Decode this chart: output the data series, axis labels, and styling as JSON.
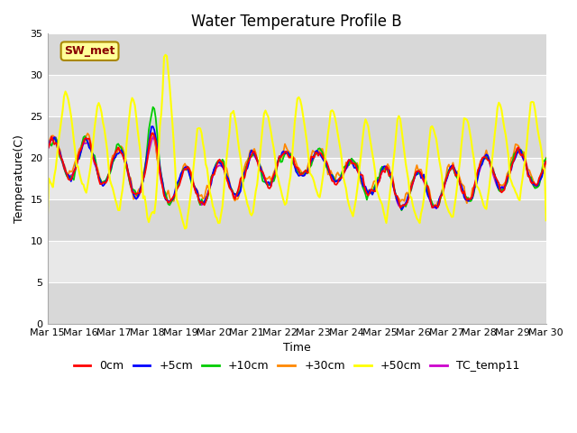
{
  "title": "Water Temperature Profile B",
  "xlabel": "Time",
  "ylabel": "Temperature(C)",
  "ylim": [
    0,
    35
  ],
  "yticks": [
    0,
    5,
    10,
    15,
    20,
    25,
    30,
    35
  ],
  "series_colors": {
    "0cm": "#ff0000",
    "+5cm": "#0000ff",
    "+10cm": "#00cc00",
    "+30cm": "#ff8800",
    "+50cm": "#ffff00",
    "TC_temp11": "#cc00cc"
  },
  "series_names": [
    "0cm",
    "+5cm",
    "+10cm",
    "+30cm",
    "+50cm",
    "TC_temp11"
  ],
  "sw_met_box_facecolor": "#ffff99",
  "sw_met_text_color": "#880000",
  "sw_met_edge_color": "#aa8800",
  "band_colors": [
    "#d8d8d8",
    "#e8e8e8"
  ],
  "title_fontsize": 12,
  "axis_fontsize": 9,
  "tick_fontsize": 8,
  "legend_fontsize": 9
}
